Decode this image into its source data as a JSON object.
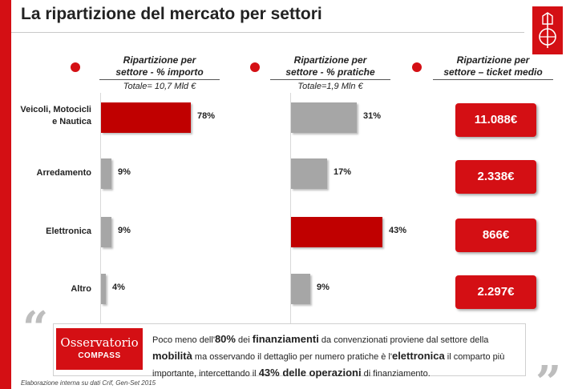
{
  "title": "La ripartizione del mercato per settori",
  "colors": {
    "brand_red": "#d40f14",
    "bar_red": "#c00000",
    "bar_grey": "#a6a6a6"
  },
  "columns": [
    {
      "line1": "Ripartizione per",
      "line2": "settore - % importo",
      "total": "Totale= 10,7 Mld €"
    },
    {
      "line1": "Ripartizione per",
      "line2": "settore - % pratiche",
      "total": "Totale=1,9 Mln €"
    },
    {
      "line1": "Ripartizione per",
      "line2": "settore – ticket medio",
      "total": ""
    }
  ],
  "categories": [
    {
      "line1": "Veicoli, Motocicli",
      "line2": "e Nautica"
    },
    {
      "line1": "Arredamento",
      "line2": ""
    },
    {
      "line1": "Elettronica",
      "line2": ""
    },
    {
      "line1": "Altro",
      "line2": ""
    }
  ],
  "chart_data": [
    {
      "type": "bar",
      "title": "Ripartizione per settore - % importo",
      "categories": [
        "Veicoli, Motocicli e Nautica",
        "Arredamento",
        "Elettronica",
        "Altro"
      ],
      "values": [
        78,
        9,
        9,
        4
      ],
      "labels": [
        "78%",
        "9%",
        "9%",
        "4%"
      ],
      "highlight": [
        true,
        false,
        false,
        false
      ],
      "xlim": [
        0,
        100
      ]
    },
    {
      "type": "bar",
      "title": "Ripartizione per settore - % pratiche",
      "categories": [
        "Veicoli, Motocicli e Nautica",
        "Arredamento",
        "Elettronica",
        "Altro"
      ],
      "values": [
        31,
        17,
        43,
        9
      ],
      "labels": [
        "31%",
        "17%",
        "43%",
        "9%"
      ],
      "highlight": [
        false,
        false,
        true,
        false
      ],
      "xlim": [
        0,
        100
      ]
    },
    {
      "type": "table",
      "title": "Ripartizione per settore – ticket medio",
      "categories": [
        "Veicoli, Motocicli e Nautica",
        "Arredamento",
        "Elettronica",
        "Altro"
      ],
      "values": [
        "11.088€",
        "2.338€",
        "866€",
        "2.297€"
      ]
    }
  ],
  "logo_box": {
    "line1": "Osservatorio",
    "line2": "COMPASS"
  },
  "note": {
    "p1": "Poco meno dell'",
    "b1": "80%",
    "p2": " dei ",
    "b2": "finanziamenti",
    "p3": " da convenzionati proviene dal settore della ",
    "b3": "mobilità",
    "p4": " ma osservando il dettaglio per numero pratiche  è l'",
    "b4": "elettronica",
    "p5": " il comparto più importante, intercettando il ",
    "b5": "43% delle operazioni",
    "p6": " di finanziamento."
  },
  "quotes": {
    "open": "“",
    "close": "”"
  },
  "source": "Elaborazione interna su dati Crif, Gen-Set 2015"
}
